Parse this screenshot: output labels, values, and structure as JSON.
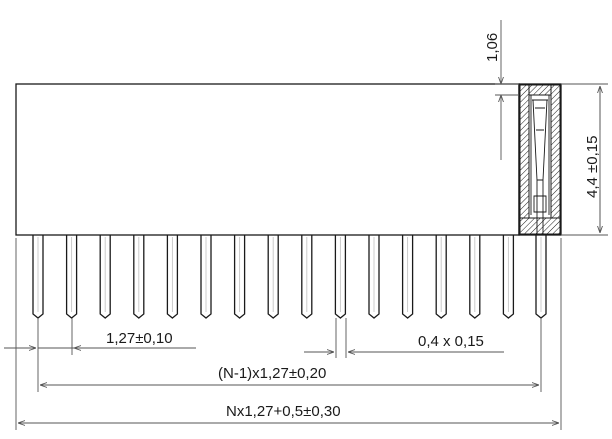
{
  "drawing": {
    "pin_count_shown": 16,
    "colors": {
      "line": "#1a1a1a",
      "dimension": "#555555",
      "background": "#ffffff"
    }
  },
  "dimensions": {
    "top_offset": "1,06",
    "body_height": "4,4 ±0,15",
    "pitch": "1,27±0,10",
    "pin_section": "0,4 x 0,15",
    "pin_span": "(N-1)x1,27±0,20",
    "overall_length": "Nx1,27+0,5±0,30"
  }
}
